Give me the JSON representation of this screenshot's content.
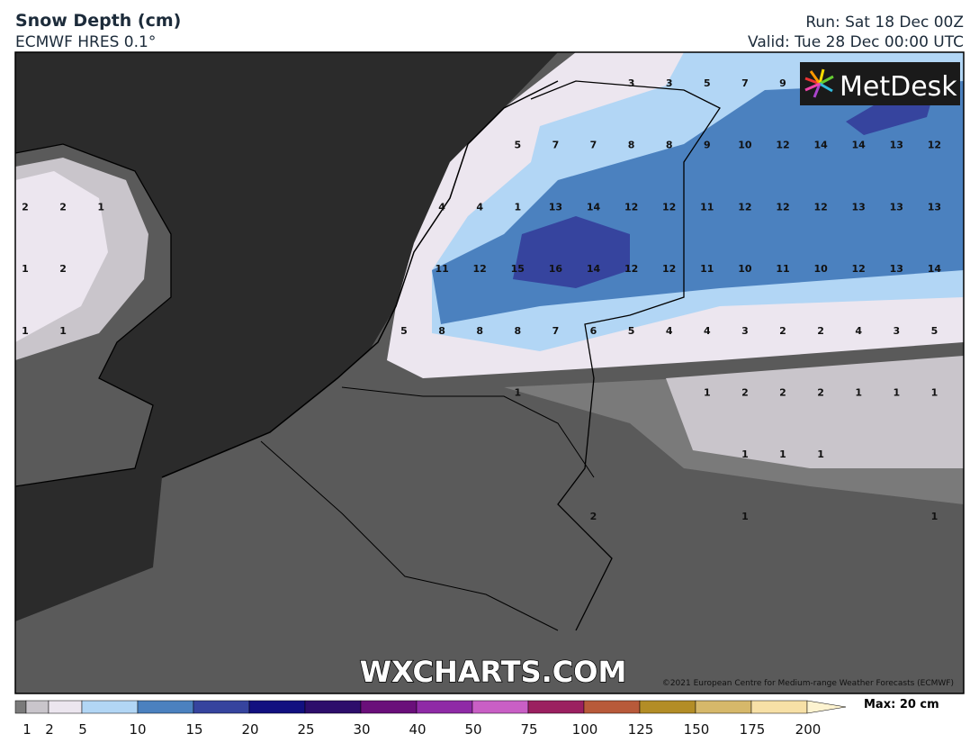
{
  "header": {
    "title": "Snow Depth (cm)",
    "model": "ECMWF HRES 0.1°",
    "run": "Run: Sat 18 Dec 00Z",
    "valid": "Valid: Tue 28 Dec 00:00 UTC"
  },
  "logo": "MetDesk",
  "watermark": "WXCHARTS.COM",
  "copyright": "©2021 European Centre for Medium-range Weather Forecasts (ECMWF)",
  "map_labels": [
    [
      null,
      null,
      null,
      null,
      null,
      null,
      null,
      null,
      null,
      null,
      null,
      null,
      null,
      null,
      null,
      null,
      3,
      3,
      5,
      7,
      9,
      null,
      null,
      null,
      null
    ],
    [
      null,
      null,
      null,
      null,
      null,
      null,
      null,
      null,
      null,
      null,
      null,
      null,
      null,
      5,
      7,
      7,
      8,
      8,
      9,
      10,
      12,
      14,
      14,
      13,
      12
    ],
    [
      2,
      2,
      1,
      null,
      null,
      null,
      null,
      null,
      null,
      null,
      null,
      4,
      4,
      1,
      13,
      14,
      12,
      12,
      11,
      12,
      12,
      12,
      13,
      13,
      13
    ],
    [
      1,
      2,
      null,
      null,
      null,
      null,
      null,
      null,
      null,
      null,
      null,
      11,
      12,
      15,
      16,
      14,
      12,
      12,
      11,
      10,
      11,
      10,
      12,
      13,
      14
    ],
    [
      1,
      1,
      null,
      null,
      null,
      null,
      null,
      null,
      null,
      null,
      5,
      8,
      8,
      8,
      7,
      6,
      5,
      4,
      4,
      3,
      2,
      2,
      4,
      3,
      5
    ],
    [
      null,
      null,
      null,
      null,
      null,
      null,
      null,
      null,
      null,
      null,
      null,
      null,
      null,
      1,
      null,
      null,
      null,
      null,
      1,
      2,
      2,
      2,
      1,
      1,
      1
    ],
    [
      null,
      null,
      null,
      null,
      null,
      null,
      null,
      null,
      null,
      null,
      null,
      null,
      null,
      null,
      null,
      null,
      null,
      null,
      null,
      1,
      1,
      1,
      null,
      null,
      null
    ],
    [
      null,
      null,
      null,
      null,
      null,
      null,
      null,
      null,
      null,
      null,
      null,
      null,
      null,
      null,
      null,
      2,
      null,
      null,
      null,
      1,
      null,
      null,
      null,
      null,
      1
    ]
  ],
  "colorbar": {
    "labels": [
      1,
      2,
      5,
      10,
      15,
      20,
      25,
      30,
      40,
      50,
      75,
      100,
      125,
      150,
      175,
      200
    ],
    "max_label": "Max: 20 cm"
  }
}
